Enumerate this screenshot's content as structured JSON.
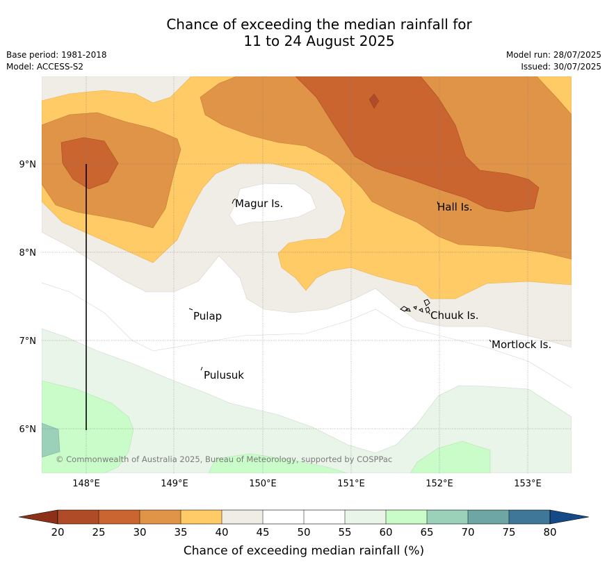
{
  "title": {
    "line1": "Chance of exceeding the median rainfall for",
    "line2": "11 to 24 August 2025"
  },
  "meta": {
    "base_period": "Base period: 1981-2018",
    "model": "Model: ACCESS-S2",
    "model_run": "Model run: 28/07/2025",
    "issued": "Issued: 30/07/2025"
  },
  "map": {
    "lon_labels": [
      "148°E",
      "149°E",
      "150°E",
      "151°E",
      "152°E",
      "153°E"
    ],
    "lat_labels": [
      "9°N",
      "8°N",
      "7°N",
      "6°N"
    ],
    "places": {
      "magur": "Magur Is.",
      "hall": "Hall Is.",
      "pulap": "Pulap",
      "chuuk": "Chuuk Is.",
      "mortlock": "Mortlock Is.",
      "pulusuk": "Pulusuk"
    },
    "copyright": "© Commonwealth of Australia 2025, Bureau of Meteorology, supported by COSPPac"
  },
  "colorbar": {
    "label": "Chance of exceeding median rainfall (%)",
    "ticks": [
      "20",
      "25",
      "30",
      "35",
      "40",
      "45",
      "50",
      "55",
      "60",
      "65",
      "70",
      "75",
      "80"
    ],
    "colors": {
      "below_20": "#8c3118",
      "20_25": "#b04b28",
      "25_30": "#cb6530",
      "30_35": "#e09448",
      "35_40": "#fecb66",
      "40_45": "#f0ece6",
      "45_50": "#ffffff",
      "50_55": "#ffffff",
      "55_60": "#eaf5ea",
      "60_65": "#c9fcc9",
      "65_70": "#9bd0b9",
      "70_75": "#6ea6a6",
      "75_80": "#3e7898",
      "above_80": "#164a86"
    }
  }
}
